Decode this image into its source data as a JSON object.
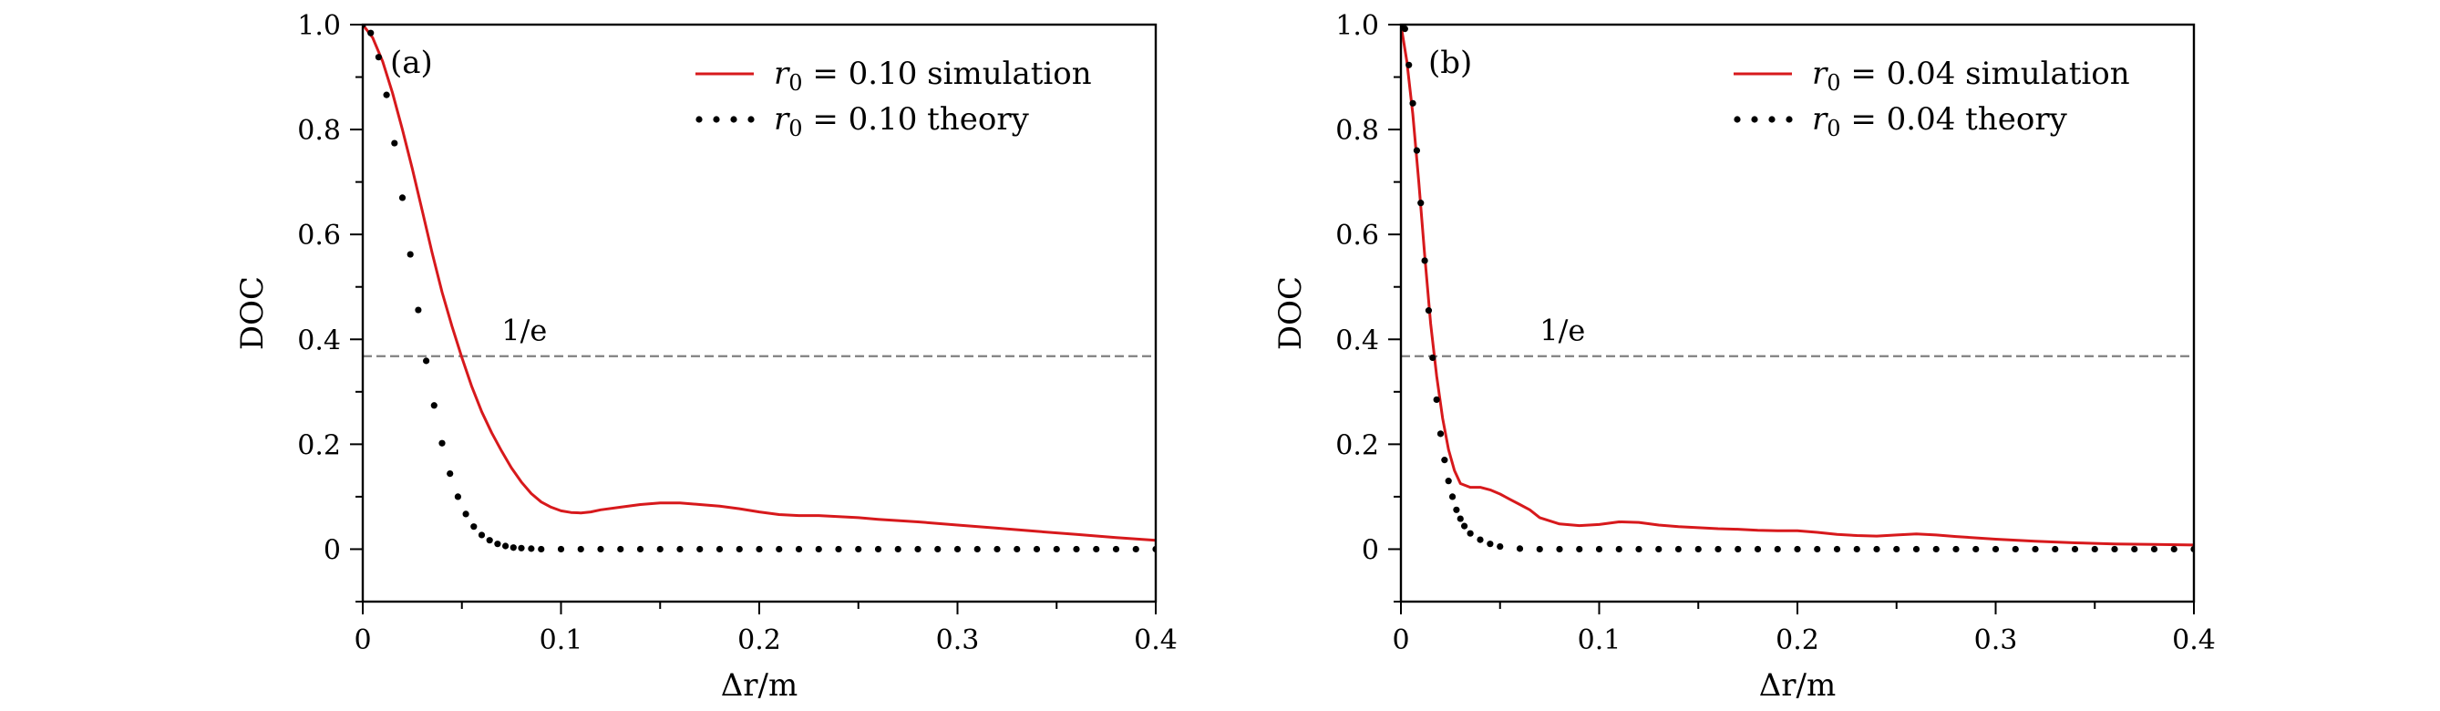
{
  "chart_data": [
    {
      "type": "line",
      "panel_label": "(a)",
      "xlabel": "Δr/m",
      "ylabel": "DOC",
      "xlim": [
        0,
        0.4
      ],
      "ylim": [
        -0.1,
        1.0
      ],
      "x_ticks": [
        0,
        0.1,
        0.2,
        0.3,
        0.4
      ],
      "x_tick_labels": [
        "0",
        "0.1",
        "0.2",
        "0.3",
        "0.4"
      ],
      "y_ticks": [
        0,
        0.2,
        0.4,
        0.6,
        0.8,
        1.0
      ],
      "y_tick_labels": [
        "0",
        "0.2",
        "0.4",
        "0.6",
        "0.8",
        "1.0"
      ],
      "legend_position": "top-right",
      "reference_line": {
        "y": 0.3679,
        "label": "1/e",
        "label_x": 0.07,
        "color": "#808080",
        "style": "dashed"
      },
      "series": [
        {
          "name": "r0 = 0.10 simulation",
          "legend_var": "r",
          "legend_sub": "0",
          "legend_rest": " = 0.10 simulation",
          "style": "line",
          "color": "#d7191c",
          "x": [
            0,
            0.005,
            0.01,
            0.015,
            0.02,
            0.025,
            0.03,
            0.035,
            0.04,
            0.045,
            0.05,
            0.055,
            0.06,
            0.065,
            0.07,
            0.075,
            0.08,
            0.085,
            0.09,
            0.095,
            0.1,
            0.105,
            0.11,
            0.115,
            0.12,
            0.13,
            0.14,
            0.15,
            0.16,
            0.17,
            0.18,
            0.19,
            0.2,
            0.21,
            0.22,
            0.23,
            0.24,
            0.25,
            0.26,
            0.28,
            0.3,
            0.32,
            0.34,
            0.36,
            0.38,
            0.4
          ],
          "y": [
            1.0,
            0.975,
            0.93,
            0.87,
            0.8,
            0.725,
            0.645,
            0.565,
            0.49,
            0.425,
            0.365,
            0.31,
            0.262,
            0.222,
            0.187,
            0.155,
            0.128,
            0.106,
            0.09,
            0.08,
            0.073,
            0.07,
            0.069,
            0.071,
            0.075,
            0.08,
            0.085,
            0.088,
            0.088,
            0.085,
            0.082,
            0.077,
            0.071,
            0.066,
            0.064,
            0.064,
            0.062,
            0.06,
            0.057,
            0.052,
            0.046,
            0.04,
            0.034,
            0.028,
            0.022,
            0.017
          ]
        },
        {
          "name": "r0 = 0.10 theory",
          "legend_var": "r",
          "legend_sub": "0",
          "legend_rest": " = 0.10 theory",
          "style": "dots",
          "color": "#000000",
          "x": [
            0,
            0.004,
            0.008,
            0.012,
            0.016,
            0.02,
            0.024,
            0.028,
            0.032,
            0.036,
            0.04,
            0.044,
            0.048,
            0.052,
            0.056,
            0.06,
            0.064,
            0.068,
            0.072,
            0.076,
            0.08,
            0.085,
            0.09,
            0.1,
            0.11,
            0.12,
            0.13,
            0.14,
            0.15,
            0.16,
            0.17,
            0.18,
            0.19,
            0.2,
            0.21,
            0.22,
            0.23,
            0.24,
            0.25,
            0.26,
            0.27,
            0.28,
            0.29,
            0.3,
            0.31,
            0.32,
            0.33,
            0.34,
            0.35,
            0.36,
            0.37,
            0.38,
            0.39,
            0.4
          ],
          "y": [
            1.0,
            0.984,
            0.938,
            0.866,
            0.774,
            0.67,
            0.562,
            0.456,
            0.359,
            0.274,
            0.202,
            0.144,
            0.1,
            0.067,
            0.043,
            0.027,
            0.017,
            0.01,
            0.006,
            0.003,
            0.002,
            0.001,
            0.0,
            0.0,
            0.0,
            0.0,
            0.0,
            0.0,
            0.0,
            0.0,
            0.0,
            0.0,
            0.0,
            0.0,
            0.0,
            0.0,
            0.0,
            0.0,
            0.0,
            0.0,
            0.0,
            0.0,
            0.0,
            0.0,
            0.0,
            0.0,
            0.0,
            0.0,
            0.0,
            0.0,
            0.0,
            0.0,
            0.0,
            0.0
          ]
        }
      ]
    },
    {
      "type": "line",
      "panel_label": "(b)",
      "xlabel": "Δr/m",
      "ylabel": "DOC",
      "xlim": [
        0,
        0.4
      ],
      "ylim": [
        -0.1,
        1.0
      ],
      "x_ticks": [
        0,
        0.1,
        0.2,
        0.3,
        0.4
      ],
      "x_tick_labels": [
        "0",
        "0.1",
        "0.2",
        "0.3",
        "0.4"
      ],
      "y_ticks": [
        0,
        0.2,
        0.4,
        0.6,
        0.8,
        1.0
      ],
      "y_tick_labels": [
        "0",
        "0.2",
        "0.4",
        "0.6",
        "0.8",
        "1.0"
      ],
      "legend_position": "top-right",
      "reference_line": {
        "y": 0.3679,
        "label": "1/e",
        "label_x": 0.07,
        "color": "#808080",
        "style": "dashed"
      },
      "series": [
        {
          "name": "r0 = 0.04 simulation",
          "legend_var": "r",
          "legend_sub": "0",
          "legend_rest": " = 0.04 simulation",
          "style": "line",
          "color": "#d7191c",
          "x": [
            0,
            0.003,
            0.006,
            0.009,
            0.012,
            0.015,
            0.018,
            0.021,
            0.024,
            0.027,
            0.03,
            0.035,
            0.04,
            0.045,
            0.05,
            0.055,
            0.06,
            0.065,
            0.07,
            0.08,
            0.09,
            0.1,
            0.11,
            0.12,
            0.13,
            0.14,
            0.15,
            0.16,
            0.17,
            0.18,
            0.19,
            0.2,
            0.21,
            0.22,
            0.23,
            0.24,
            0.25,
            0.26,
            0.27,
            0.28,
            0.3,
            0.32,
            0.34,
            0.36,
            0.38,
            0.4
          ],
          "y": [
            1.0,
            0.93,
            0.83,
            0.7,
            0.56,
            0.43,
            0.33,
            0.25,
            0.19,
            0.15,
            0.125,
            0.118,
            0.118,
            0.113,
            0.105,
            0.095,
            0.085,
            0.075,
            0.06,
            0.048,
            0.045,
            0.047,
            0.052,
            0.051,
            0.046,
            0.043,
            0.041,
            0.039,
            0.038,
            0.036,
            0.035,
            0.035,
            0.032,
            0.028,
            0.026,
            0.025,
            0.027,
            0.029,
            0.027,
            0.024,
            0.019,
            0.015,
            0.012,
            0.01,
            0.009,
            0.008
          ]
        },
        {
          "name": "r0 = 0.04 theory",
          "legend_var": "r",
          "legend_sub": "0",
          "legend_rest": " = 0.04 theory",
          "style": "dots",
          "color": "#000000",
          "x": [
            0,
            0.002,
            0.004,
            0.006,
            0.008,
            0.01,
            0.012,
            0.014,
            0.016,
            0.018,
            0.02,
            0.022,
            0.024,
            0.026,
            0.028,
            0.03,
            0.032,
            0.035,
            0.04,
            0.045,
            0.05,
            0.06,
            0.07,
            0.08,
            0.09,
            0.1,
            0.11,
            0.12,
            0.13,
            0.14,
            0.15,
            0.16,
            0.17,
            0.18,
            0.19,
            0.2,
            0.21,
            0.22,
            0.23,
            0.24,
            0.25,
            0.26,
            0.27,
            0.28,
            0.29,
            0.3,
            0.31,
            0.32,
            0.33,
            0.34,
            0.35,
            0.36,
            0.37,
            0.38,
            0.39,
            0.4
          ],
          "y": [
            1.0,
            0.992,
            0.923,
            0.85,
            0.76,
            0.66,
            0.55,
            0.455,
            0.365,
            0.285,
            0.22,
            0.17,
            0.13,
            0.1,
            0.075,
            0.058,
            0.044,
            0.03,
            0.018,
            0.01,
            0.005,
            0.001,
            0.0,
            0.0,
            0.0,
            0.0,
            0.0,
            0.0,
            0.0,
            0.0,
            0.0,
            0.0,
            0.0,
            0.0,
            0.0,
            0.0,
            0.0,
            0.0,
            0.0,
            0.0,
            0.0,
            0.0,
            0.0,
            0.0,
            0.0,
            0.0,
            0.0,
            0.0,
            0.0,
            0.0,
            0.0,
            0.0,
            0.0,
            0.0,
            0.0,
            0.0
          ]
        }
      ]
    }
  ]
}
